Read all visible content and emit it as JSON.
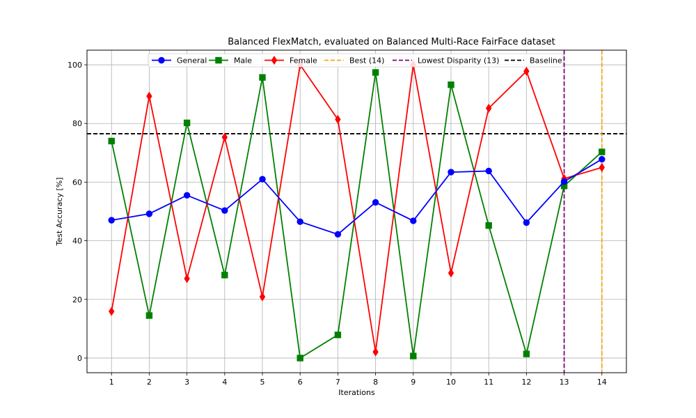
{
  "chart_data": {
    "type": "line",
    "title": "Balanced FlexMatch, evaluated on Balanced Multi-Race FairFace dataset",
    "xlabel": "Iterations",
    "ylabel": "Test Accuracy [%]",
    "x": [
      1,
      2,
      3,
      4,
      5,
      6,
      7,
      8,
      9,
      10,
      11,
      12,
      13,
      14
    ],
    "xlim": [
      0.35,
      14.65
    ],
    "ylim": [
      -5,
      105
    ],
    "yticks": [
      0,
      20,
      40,
      60,
      80,
      100
    ],
    "grid": true,
    "legend_position": "top",
    "series": [
      {
        "name": "General",
        "color": "#0000ff",
        "marker": "circle",
        "values": [
          47.0,
          49.2,
          55.5,
          50.3,
          61.0,
          46.5,
          42.2,
          53.1,
          46.8,
          63.4,
          63.8,
          46.2,
          60.2,
          67.8
        ]
      },
      {
        "name": "Male",
        "color": "#008000",
        "marker": "square",
        "values": [
          74.0,
          14.5,
          80.2,
          28.3,
          95.7,
          0.0,
          7.9,
          97.4,
          0.7,
          93.2,
          45.2,
          1.4,
          58.7,
          70.3
        ]
      },
      {
        "name": "Female",
        "color": "#ff0000",
        "marker": "diamond",
        "values": [
          15.9,
          89.3,
          27.1,
          75.3,
          20.9,
          100.0,
          81.4,
          2.1,
          100.0,
          29.0,
          85.2,
          97.8,
          61.2,
          65.0
        ]
      }
    ],
    "vlines": [
      {
        "name": "Best (14)",
        "x": 14,
        "color": "#ffa500",
        "style": "dashed"
      },
      {
        "name": "Lowest Disparity (13)",
        "x": 13,
        "color": "#800080",
        "style": "dashed"
      }
    ],
    "hlines": [
      {
        "name": "Baseline",
        "y": 76.5,
        "color": "#000000",
        "style": "dashed"
      }
    ]
  }
}
